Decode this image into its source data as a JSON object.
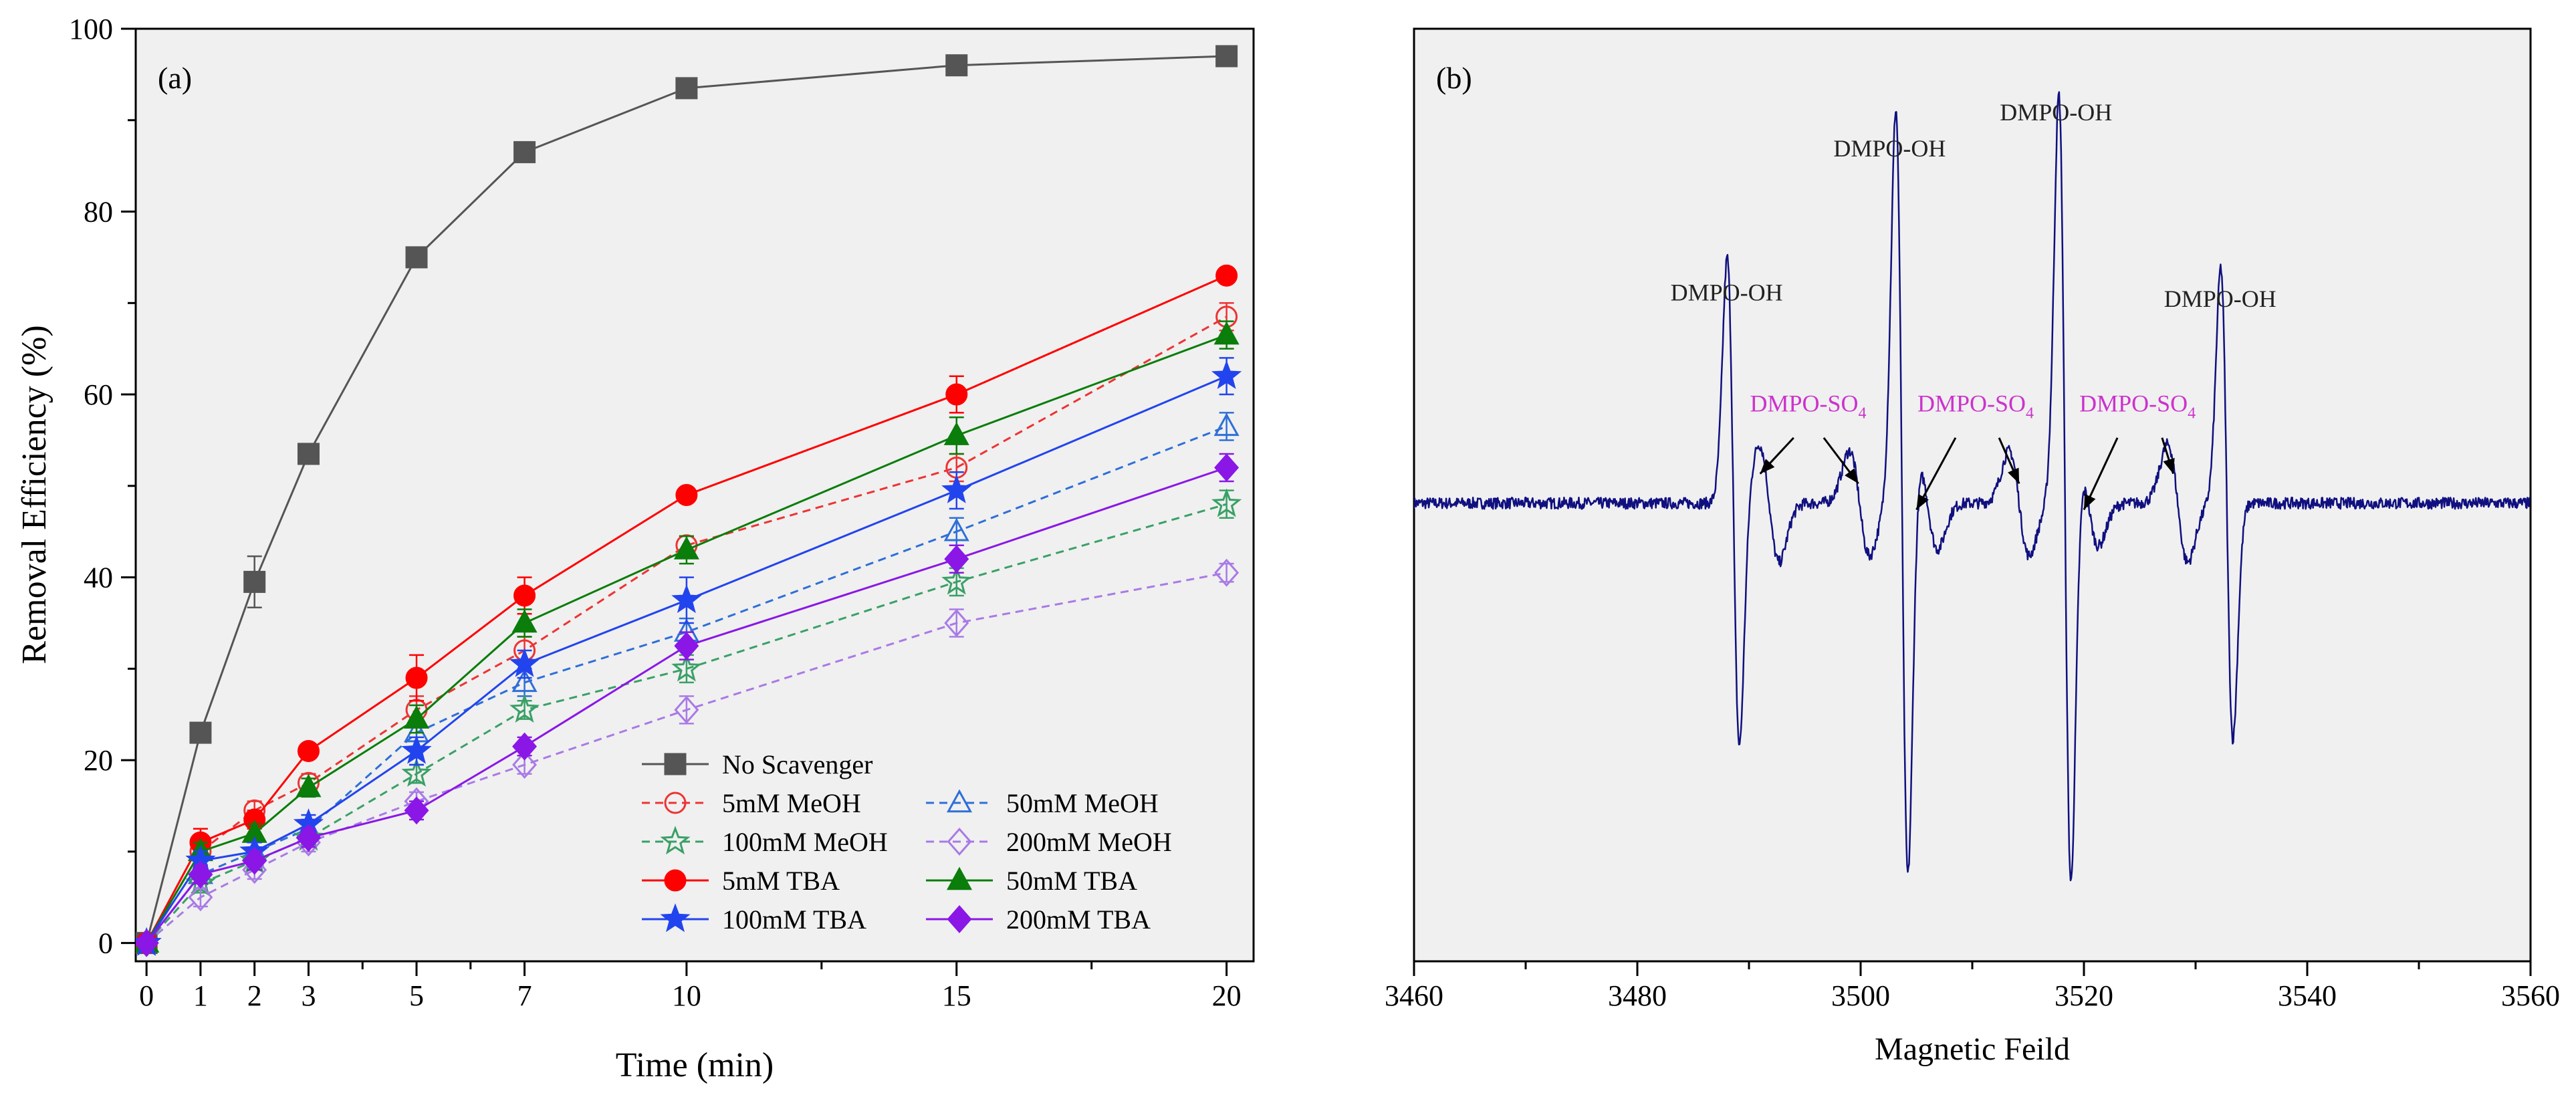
{
  "chart_data": [
    {
      "type": "line",
      "panel_label": "(a)",
      "xlabel": "Time (min)",
      "ylabel": "Removal Efficiency (%)",
      "xlim": [
        -0.2,
        20.5
      ],
      "ylim": [
        -2,
        100
      ],
      "x_ticks": [
        0,
        1,
        2,
        3,
        5,
        7,
        10,
        15,
        20
      ],
      "x_tick_labels": [
        "0",
        "1",
        "2",
        "3",
        "5",
        "7",
        "10",
        "15",
        "20"
      ],
      "y_ticks": [
        0,
        20,
        40,
        60,
        80,
        100
      ],
      "y_tick_labels": [
        "0",
        "20",
        "40",
        "60",
        "80",
        "100"
      ],
      "background": "#f0f0f0",
      "x": [
        0,
        1,
        2,
        3,
        5,
        7,
        10,
        15,
        20
      ],
      "series": [
        {
          "name": "No Scavenger",
          "color": "#555555",
          "marker": "square",
          "filled": true,
          "dash": false,
          "values": [
            0,
            23,
            39.5,
            53.5,
            75,
            86.5,
            93.5,
            96,
            97
          ],
          "errors": [
            0,
            0.5,
            2.8,
            0.5,
            0.5,
            0.5,
            0.5,
            0.5,
            0.5
          ]
        },
        {
          "name": "5mM MeOH",
          "color": "#ee3333",
          "marker": "circle",
          "filled": false,
          "dash": true,
          "values": [
            0,
            10,
            14.5,
            17.5,
            25.5,
            32,
            43.5,
            52,
            68.5
          ],
          "errors": [
            0,
            1,
            1,
            1,
            1.5,
            1.5,
            1,
            1.5,
            1.5
          ]
        },
        {
          "name": "50mM MeOH",
          "color": "#2e6fd8",
          "marker": "triangle",
          "filled": false,
          "dash": true,
          "values": [
            0,
            7.5,
            10,
            12.5,
            23,
            28.5,
            34,
            45,
            56.5
          ],
          "errors": [
            0,
            1,
            1,
            1,
            1.5,
            1.5,
            1.5,
            1.5,
            1.5
          ]
        },
        {
          "name": "100mM MeOH",
          "color": "#3aa066",
          "marker": "star",
          "filled": false,
          "dash": true,
          "values": [
            0,
            6.5,
            9,
            11.5,
            18.5,
            25.5,
            30,
            39.5,
            48
          ],
          "errors": [
            0,
            1,
            1,
            1,
            1,
            1,
            1.5,
            1.5,
            1.5
          ]
        },
        {
          "name": "200mM MeOH",
          "color": "#a97ae6",
          "marker": "diamond",
          "filled": false,
          "dash": true,
          "values": [
            0,
            5,
            8,
            11,
            15.5,
            19.5,
            25.5,
            35,
            40.5
          ],
          "errors": [
            0,
            1,
            1,
            1,
            1,
            1,
            1.5,
            1.5,
            1
          ]
        },
        {
          "name": "5mM TBA",
          "color": "#ff0000",
          "marker": "circle",
          "filled": true,
          "dash": false,
          "values": [
            0,
            11,
            13.5,
            21,
            29,
            38,
            49,
            60,
            73
          ],
          "errors": [
            0,
            1.5,
            1,
            0.5,
            2.5,
            2,
            0.5,
            2,
            0.5
          ]
        },
        {
          "name": "50mM TBA",
          "color": "#0a7d0a",
          "marker": "triangle",
          "filled": true,
          "dash": false,
          "values": [
            0,
            10,
            12,
            17,
            24.5,
            35,
            43,
            55.5,
            66.5
          ],
          "errors": [
            0,
            1,
            1,
            1,
            1.5,
            1.5,
            1.5,
            2,
            1.5
          ]
        },
        {
          "name": "100mM TBA",
          "color": "#2244ee",
          "marker": "star",
          "filled": true,
          "dash": false,
          "values": [
            0,
            9,
            10,
            13,
            21,
            30.5,
            37.5,
            49.5,
            62
          ],
          "errors": [
            0,
            1,
            1,
            1,
            1.5,
            1.5,
            2.5,
            2,
            2
          ]
        },
        {
          "name": "200mM TBA",
          "color": "#8a17e6",
          "marker": "diamond",
          "filled": true,
          "dash": false,
          "values": [
            0,
            7.5,
            9,
            11.5,
            14.5,
            21.5,
            32.5,
            42,
            52
          ],
          "errors": [
            0,
            1,
            1,
            1,
            1,
            1,
            1.5,
            1.5,
            1.5
          ]
        }
      ],
      "legend": {
        "placement": "lower-right",
        "rows": [
          [
            "No Scavenger"
          ],
          [
            "5mM MeOH",
            "50mM MeOH"
          ],
          [
            "100mM MeOH",
            "200mM MeOH"
          ],
          [
            "5mM TBA",
            "50mM TBA"
          ],
          [
            "100mM TBA",
            "200mM TBA"
          ]
        ]
      }
    },
    {
      "type": "line",
      "panel_label": "(b)",
      "xlabel": "Magnetic Feild",
      "ylabel": "",
      "xlim": [
        3460,
        3560
      ],
      "ylim": [
        -1.4,
        1.45
      ],
      "x_ticks": [
        3460,
        3480,
        3500,
        3520,
        3540,
        3560
      ],
      "x_tick_labels": [
        "3460",
        "3480",
        "3500",
        "3520",
        "3540",
        "3560"
      ],
      "minor_x_ticks": [
        3470,
        3490,
        3510,
        3530,
        3550
      ],
      "background": "#f0f0f0",
      "color": "#101080",
      "baseline": 0,
      "peaks": [
        {
          "center": 3488.6,
          "amplitude": 0.75,
          "width": 0.55
        },
        {
          "center": 3503.7,
          "amplitude": 1.2,
          "width": 0.55
        },
        {
          "center": 3518.3,
          "amplitude": 1.24,
          "width": 0.55
        },
        {
          "center": 3532.8,
          "amplitude": 0.72,
          "width": 0.55
        }
      ],
      "minor_peaks": [
        {
          "center": 3491.8,
          "amplitude": 0.18,
          "width": 0.9
        },
        {
          "center": 3499.9,
          "amplitude": 0.16,
          "width": 0.9
        },
        {
          "center": 3506.0,
          "amplitude": 0.14,
          "width": 0.9
        },
        {
          "center": 3514.2,
          "amplitude": 0.16,
          "width": 0.9
        },
        {
          "center": 3520.4,
          "amplitude": 0.13,
          "width": 0.9
        },
        {
          "center": 3528.4,
          "amplitude": 0.18,
          "width": 0.9
        }
      ],
      "annotations": [
        {
          "id": "oh1",
          "text": "DMPO-OH",
          "x": 3488.0,
          "y": 0.62,
          "color": "#222222"
        },
        {
          "id": "oh2",
          "text": "DMPO-OH",
          "x": 3502.6,
          "y": 1.06,
          "color": "#222222"
        },
        {
          "id": "oh3",
          "text": "DMPO-OH",
          "x": 3517.5,
          "y": 1.17,
          "color": "#222222"
        },
        {
          "id": "oh4",
          "text": "DMPO-OH",
          "x": 3532.2,
          "y": 0.6,
          "color": "#222222"
        },
        {
          "id": "so1",
          "text": "DMPO-SO",
          "sub": "4",
          "x": 3495.3,
          "y": 0.28,
          "color": "#cc33cc",
          "arrows": [
            {
              "from": [
                3494.0,
                0.2
              ],
              "to": [
                3491.0,
                0.09
              ]
            },
            {
              "from": [
                3496.7,
                0.2
              ],
              "to": [
                3499.8,
                0.06
              ]
            }
          ]
        },
        {
          "id": "so2",
          "text": "DMPO-SO",
          "sub": "4",
          "x": 3510.3,
          "y": 0.28,
          "color": "#cc33cc",
          "arrows": [
            {
              "from": [
                3508.5,
                0.2
              ],
              "to": [
                3505.0,
                -0.02
              ]
            },
            {
              "from": [
                3512.4,
                0.2
              ],
              "to": [
                3514.2,
                0.06
              ]
            }
          ]
        },
        {
          "id": "so3",
          "text": "DMPO-SO",
          "sub": "4",
          "x": 3524.8,
          "y": 0.28,
          "color": "#cc33cc",
          "arrows": [
            {
              "from": [
                3523.0,
                0.2
              ],
              "to": [
                3520.0,
                -0.02
              ]
            },
            {
              "from": [
                3527.0,
                0.2
              ],
              "to": [
                3528.0,
                0.09
              ]
            }
          ]
        }
      ]
    }
  ]
}
